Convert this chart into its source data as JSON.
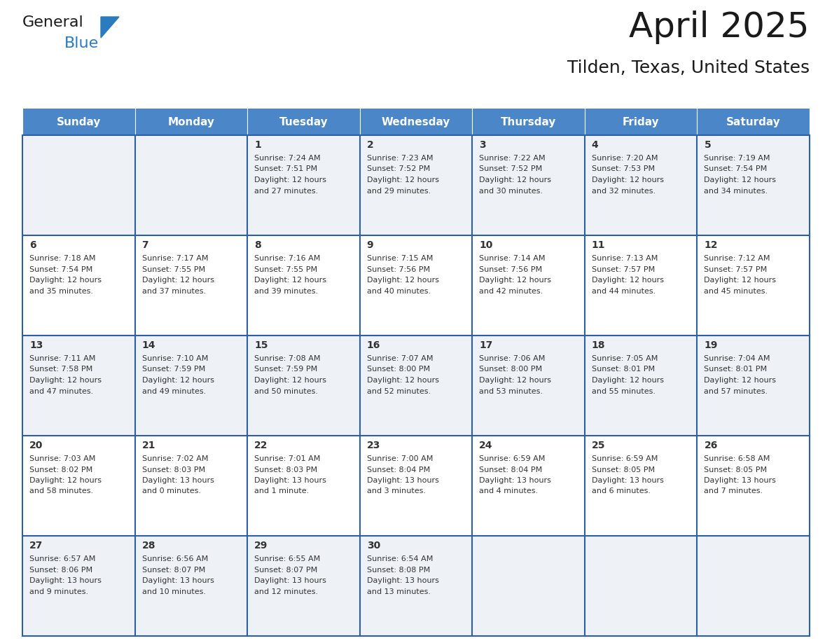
{
  "title": "April 2025",
  "subtitle": "Tilden, Texas, United States",
  "header_bg": "#4a86c8",
  "header_text_color": "#ffffff",
  "row_bg_light": "#eef2f7",
  "row_bg_white": "#ffffff",
  "border_color": "#2e5fa3",
  "grid_line_color": "#4a86c8",
  "text_color": "#333333",
  "info_text_color": "#333333",
  "days_of_week": [
    "Sunday",
    "Monday",
    "Tuesday",
    "Wednesday",
    "Thursday",
    "Friday",
    "Saturday"
  ],
  "weeks": [
    [
      {
        "day": "",
        "info": ""
      },
      {
        "day": "",
        "info": ""
      },
      {
        "day": "1",
        "info": "Sunrise: 7:24 AM\nSunset: 7:51 PM\nDaylight: 12 hours\nand 27 minutes."
      },
      {
        "day": "2",
        "info": "Sunrise: 7:23 AM\nSunset: 7:52 PM\nDaylight: 12 hours\nand 29 minutes."
      },
      {
        "day": "3",
        "info": "Sunrise: 7:22 AM\nSunset: 7:52 PM\nDaylight: 12 hours\nand 30 minutes."
      },
      {
        "day": "4",
        "info": "Sunrise: 7:20 AM\nSunset: 7:53 PM\nDaylight: 12 hours\nand 32 minutes."
      },
      {
        "day": "5",
        "info": "Sunrise: 7:19 AM\nSunset: 7:54 PM\nDaylight: 12 hours\nand 34 minutes."
      }
    ],
    [
      {
        "day": "6",
        "info": "Sunrise: 7:18 AM\nSunset: 7:54 PM\nDaylight: 12 hours\nand 35 minutes."
      },
      {
        "day": "7",
        "info": "Sunrise: 7:17 AM\nSunset: 7:55 PM\nDaylight: 12 hours\nand 37 minutes."
      },
      {
        "day": "8",
        "info": "Sunrise: 7:16 AM\nSunset: 7:55 PM\nDaylight: 12 hours\nand 39 minutes."
      },
      {
        "day": "9",
        "info": "Sunrise: 7:15 AM\nSunset: 7:56 PM\nDaylight: 12 hours\nand 40 minutes."
      },
      {
        "day": "10",
        "info": "Sunrise: 7:14 AM\nSunset: 7:56 PM\nDaylight: 12 hours\nand 42 minutes."
      },
      {
        "day": "11",
        "info": "Sunrise: 7:13 AM\nSunset: 7:57 PM\nDaylight: 12 hours\nand 44 minutes."
      },
      {
        "day": "12",
        "info": "Sunrise: 7:12 AM\nSunset: 7:57 PM\nDaylight: 12 hours\nand 45 minutes."
      }
    ],
    [
      {
        "day": "13",
        "info": "Sunrise: 7:11 AM\nSunset: 7:58 PM\nDaylight: 12 hours\nand 47 minutes."
      },
      {
        "day": "14",
        "info": "Sunrise: 7:10 AM\nSunset: 7:59 PM\nDaylight: 12 hours\nand 49 minutes."
      },
      {
        "day": "15",
        "info": "Sunrise: 7:08 AM\nSunset: 7:59 PM\nDaylight: 12 hours\nand 50 minutes."
      },
      {
        "day": "16",
        "info": "Sunrise: 7:07 AM\nSunset: 8:00 PM\nDaylight: 12 hours\nand 52 minutes."
      },
      {
        "day": "17",
        "info": "Sunrise: 7:06 AM\nSunset: 8:00 PM\nDaylight: 12 hours\nand 53 minutes."
      },
      {
        "day": "18",
        "info": "Sunrise: 7:05 AM\nSunset: 8:01 PM\nDaylight: 12 hours\nand 55 minutes."
      },
      {
        "day": "19",
        "info": "Sunrise: 7:04 AM\nSunset: 8:01 PM\nDaylight: 12 hours\nand 57 minutes."
      }
    ],
    [
      {
        "day": "20",
        "info": "Sunrise: 7:03 AM\nSunset: 8:02 PM\nDaylight: 12 hours\nand 58 minutes."
      },
      {
        "day": "21",
        "info": "Sunrise: 7:02 AM\nSunset: 8:03 PM\nDaylight: 13 hours\nand 0 minutes."
      },
      {
        "day": "22",
        "info": "Sunrise: 7:01 AM\nSunset: 8:03 PM\nDaylight: 13 hours\nand 1 minute."
      },
      {
        "day": "23",
        "info": "Sunrise: 7:00 AM\nSunset: 8:04 PM\nDaylight: 13 hours\nand 3 minutes."
      },
      {
        "day": "24",
        "info": "Sunrise: 6:59 AM\nSunset: 8:04 PM\nDaylight: 13 hours\nand 4 minutes."
      },
      {
        "day": "25",
        "info": "Sunrise: 6:59 AM\nSunset: 8:05 PM\nDaylight: 13 hours\nand 6 minutes."
      },
      {
        "day": "26",
        "info": "Sunrise: 6:58 AM\nSunset: 8:05 PM\nDaylight: 13 hours\nand 7 minutes."
      }
    ],
    [
      {
        "day": "27",
        "info": "Sunrise: 6:57 AM\nSunset: 8:06 PM\nDaylight: 13 hours\nand 9 minutes."
      },
      {
        "day": "28",
        "info": "Sunrise: 6:56 AM\nSunset: 8:07 PM\nDaylight: 13 hours\nand 10 minutes."
      },
      {
        "day": "29",
        "info": "Sunrise: 6:55 AM\nSunset: 8:07 PM\nDaylight: 13 hours\nand 12 minutes."
      },
      {
        "day": "30",
        "info": "Sunrise: 6:54 AM\nSunset: 8:08 PM\nDaylight: 13 hours\nand 13 minutes."
      },
      {
        "day": "",
        "info": ""
      },
      {
        "day": "",
        "info": ""
      },
      {
        "day": "",
        "info": ""
      }
    ]
  ],
  "logo_general_color": "#1a1a1a",
  "logo_blue_color": "#2b7bbf",
  "logo_triangle_color": "#2b7bbf",
  "title_fontsize": 36,
  "subtitle_fontsize": 18,
  "header_fontsize": 11,
  "day_num_fontsize": 10,
  "info_fontsize": 8
}
